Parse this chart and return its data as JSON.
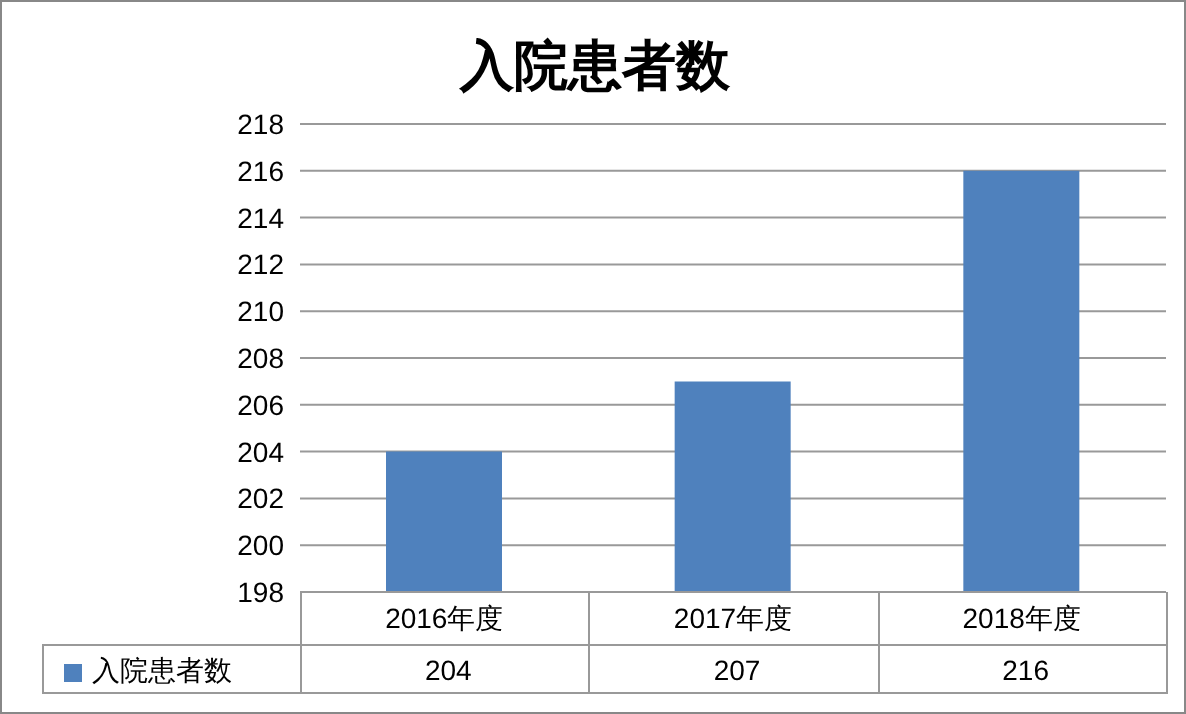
{
  "chart_data": {
    "type": "bar",
    "title": "入院患者数",
    "categories": [
      "2016年度",
      "2017年度",
      "2018年度"
    ],
    "series": [
      {
        "name": "入院患者数",
        "color": "#4f81bd",
        "values": [
          204,
          207,
          216
        ]
      }
    ],
    "ylim": [
      198,
      218
    ],
    "yticks": [
      198,
      200,
      202,
      204,
      206,
      208,
      210,
      212,
      214,
      216,
      218
    ],
    "grid": "y",
    "legend": "bottom",
    "data_labels": true
  }
}
